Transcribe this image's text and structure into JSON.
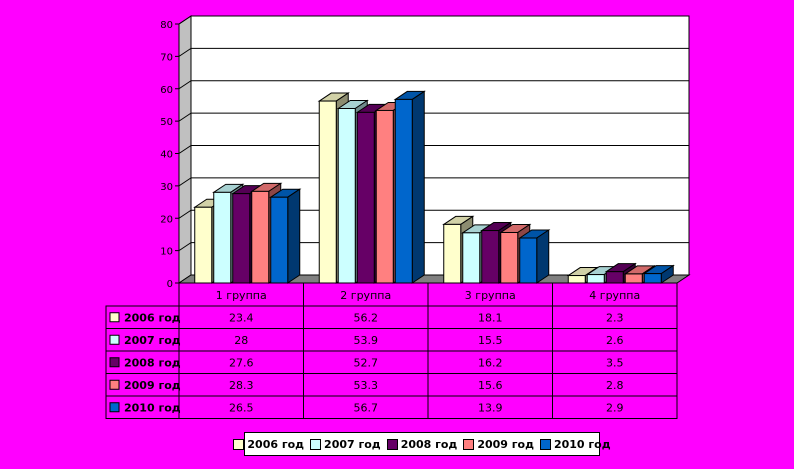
{
  "chart_data": {
    "type": "bar",
    "categories": [
      "1 группа",
      "2 группа",
      "3 группа",
      "4 группа"
    ],
    "series": [
      {
        "name": "2006 год",
        "color": "#ffffcc",
        "values": [
          23.4,
          56.2,
          18.1,
          2.3
        ],
        "labels": [
          "23.4",
          "56.2",
          "18.1",
          "2.3"
        ]
      },
      {
        "name": "2007 год",
        "color": "#ccffff",
        "values": [
          28,
          53.9,
          15.5,
          2.6
        ],
        "labels": [
          "28",
          "53.9",
          "15.5",
          "2.6"
        ]
      },
      {
        "name": "2008 год",
        "color": "#660066",
        "values": [
          27.6,
          52.7,
          16.2,
          3.5
        ],
        "labels": [
          "27.6",
          "52.7",
          "16.2",
          "3.5"
        ]
      },
      {
        "name": "2009 год",
        "color": "#ff8080",
        "values": [
          28.3,
          53.3,
          15.6,
          2.8
        ],
        "labels": [
          "28.3",
          "53.3",
          "15.6",
          "2.8"
        ]
      },
      {
        "name": "2010 год",
        "color": "#0066cc",
        "values": [
          26.5,
          56.7,
          13.9,
          2.9
        ],
        "labels": [
          "26.5",
          "56.7",
          "13.9",
          "2.9"
        ]
      }
    ],
    "yticks": [
      0,
      10,
      20,
      30,
      40,
      50,
      60,
      70,
      80
    ],
    "ylim": [
      0,
      80
    ],
    "grid": true,
    "legend": "bottom",
    "title": "",
    "xlabel": "",
    "ylabel": ""
  }
}
